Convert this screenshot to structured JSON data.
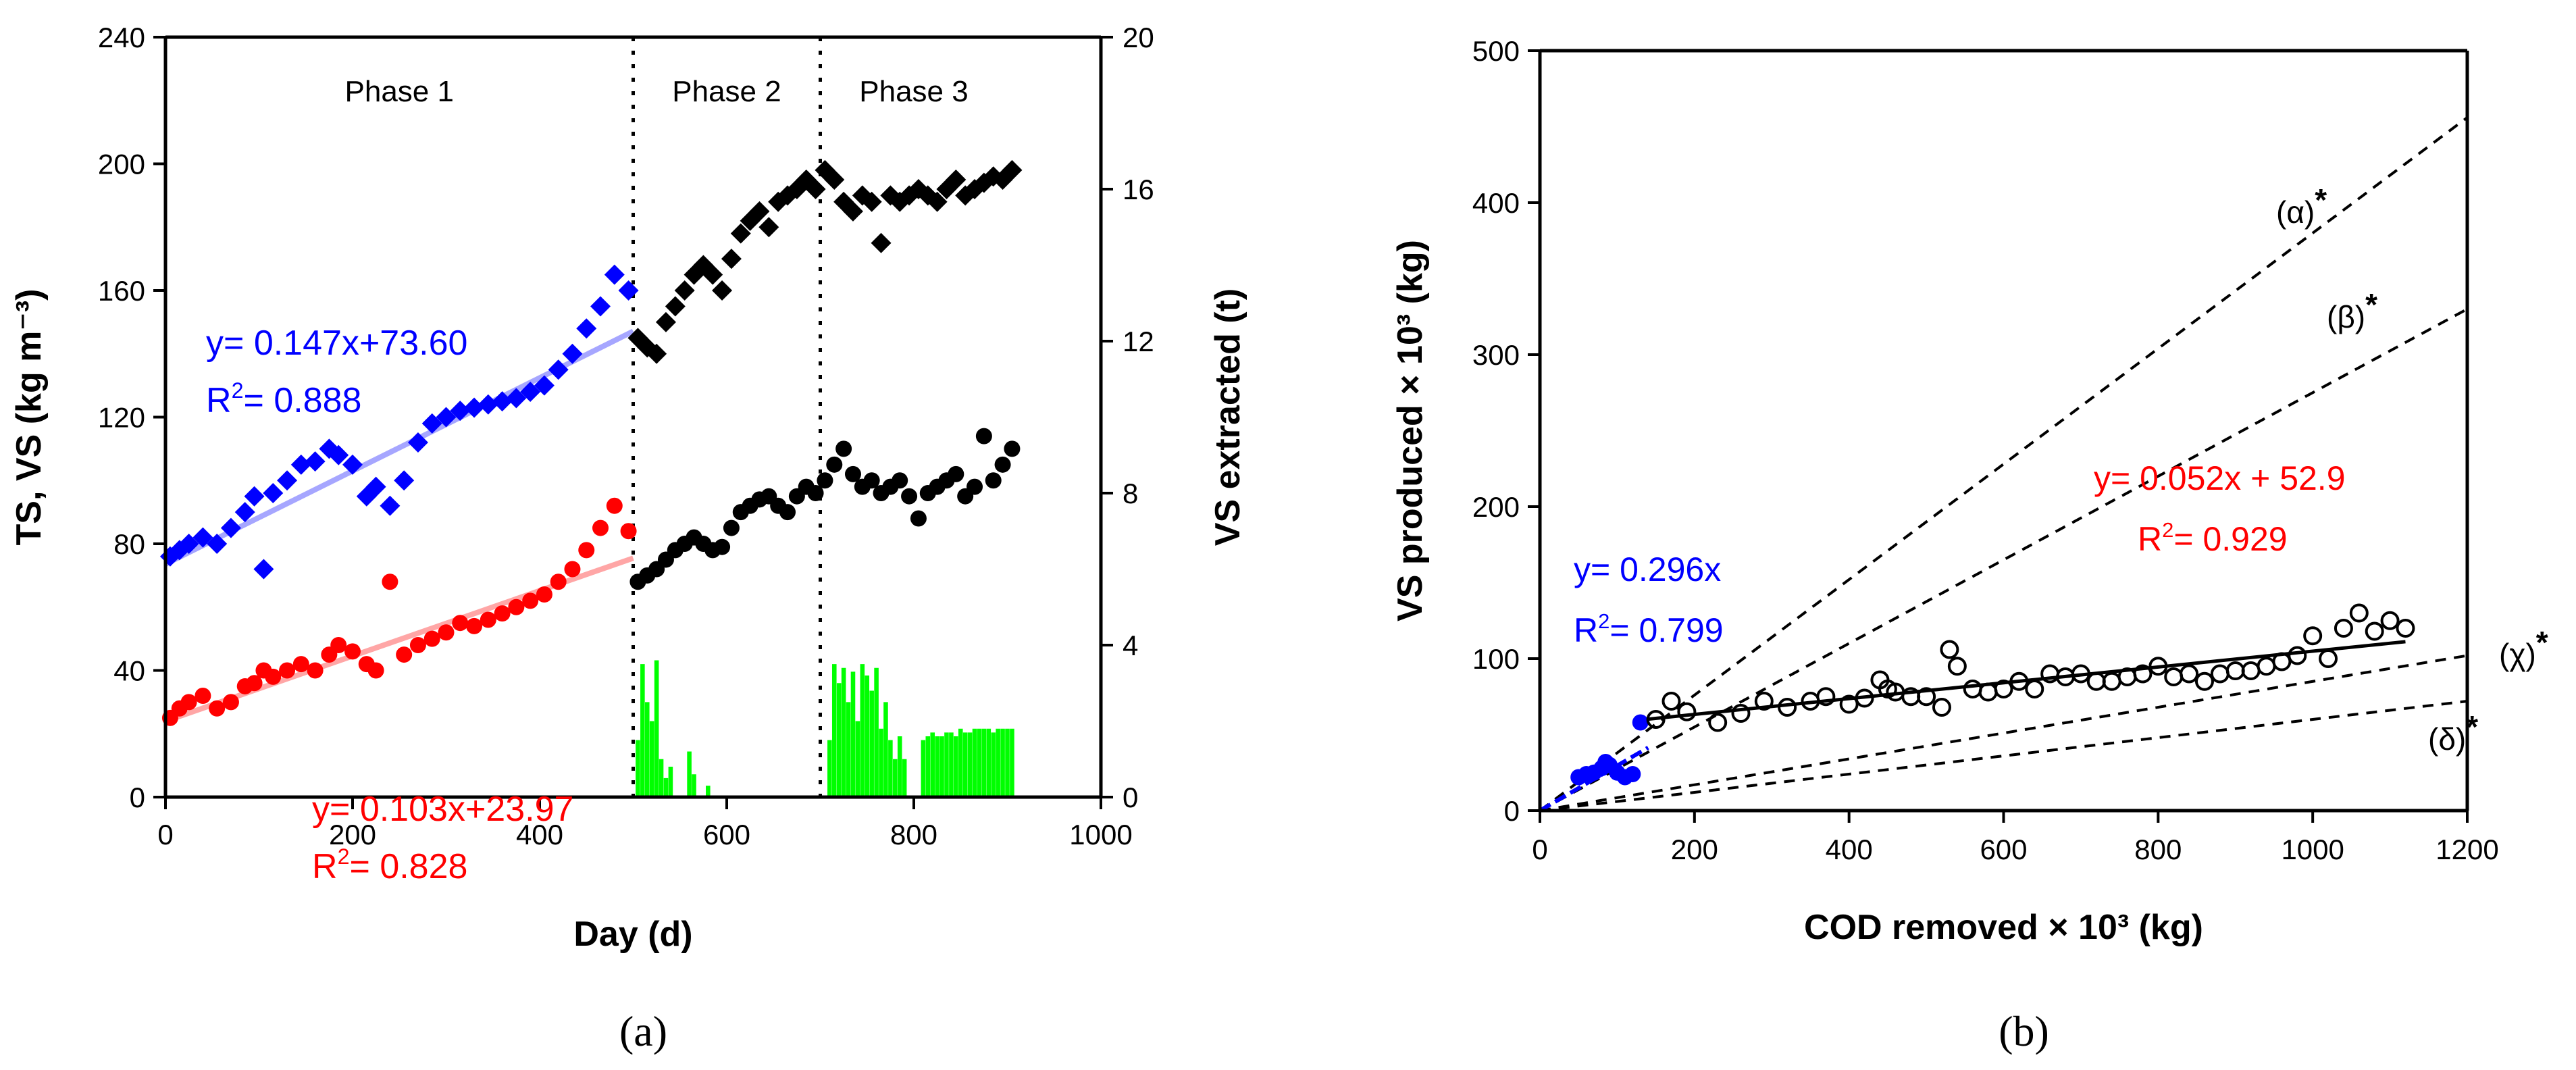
{
  "chart_data": [
    {
      "panel": "(a)",
      "type": "scatter",
      "xlabel": "Day (d)",
      "ylabel": "TS, VS (kg m⁻³)",
      "y2label": "VS extracted (t)",
      "xlim": [
        0,
        1000
      ],
      "ylim": [
        0,
        240
      ],
      "y2lim": [
        0,
        20
      ],
      "xticks": [
        0,
        200,
        400,
        600,
        800,
        1000
      ],
      "yticks": [
        0,
        40,
        80,
        120,
        160,
        200,
        240
      ],
      "y2ticks": [
        0,
        4,
        8,
        12,
        16,
        20
      ],
      "grid": false,
      "phase_dividers": [
        500,
        700
      ],
      "phases": [
        "Phase 1",
        "Phase 2",
        "Phase 3"
      ],
      "annotations": [
        {
          "text": "y= 0.147x+73.60",
          "color": "#0000ff"
        },
        {
          "text": "R",
          "sup": "2",
          "tail": "= 0.888",
          "color": "#0000ff"
        },
        {
          "text": "y= 0.103x+23.97",
          "color": "#ff0000"
        },
        {
          "text": "R",
          "sup": "2",
          "tail": "= 0.828",
          "color": "#ff0000"
        }
      ],
      "series": [
        {
          "marker": "diamond",
          "color": "#0000ff",
          "axis": "y",
          "x": [
            5,
            15,
            25,
            40,
            55,
            70,
            85,
            95,
            105,
            115,
            130,
            145,
            160,
            175,
            185,
            200,
            215,
            225,
            240,
            255,
            270,
            285,
            300,
            315,
            330,
            345,
            360,
            375,
            390,
            405,
            420,
            435,
            450,
            465,
            480,
            495
          ],
          "y": [
            76,
            78,
            80,
            82,
            80,
            85,
            90,
            95,
            72,
            96,
            100,
            105,
            106,
            110,
            108,
            105,
            95,
            98,
            92,
            100,
            112,
            118,
            120,
            122,
            123,
            124,
            125,
            126,
            128,
            130,
            135,
            140,
            148,
            155,
            165,
            160
          ],
          "trend": {
            "slope": 0.147,
            "intercept": 73.6,
            "x_range": [
              0,
              500
            ]
          }
        },
        {
          "marker": "circle",
          "color": "#ff0000",
          "axis": "y",
          "x": [
            5,
            15,
            25,
            40,
            55,
            70,
            85,
            95,
            105,
            115,
            130,
            145,
            160,
            175,
            185,
            200,
            215,
            225,
            240,
            255,
            270,
            285,
            300,
            315,
            330,
            345,
            360,
            375,
            390,
            405,
            420,
            435,
            450,
            465,
            480,
            495
          ],
          "y": [
            25,
            28,
            30,
            32,
            28,
            30,
            35,
            36,
            40,
            38,
            40,
            42,
            40,
            45,
            48,
            46,
            42,
            40,
            68,
            45,
            48,
            50,
            52,
            55,
            54,
            56,
            58,
            60,
            62,
            64,
            68,
            72,
            78,
            85,
            92,
            84
          ],
          "trend": {
            "slope": 0.103,
            "intercept": 23.97,
            "x_range": [
              0,
              500
            ]
          }
        },
        {
          "marker": "diamond",
          "color": "#000000",
          "axis": "y",
          "x": [
            505,
            515,
            525,
            535,
            545,
            555,
            565,
            575,
            585,
            595,
            605,
            615,
            625,
            635,
            645,
            655,
            665,
            675,
            685,
            695,
            705,
            715,
            725,
            735,
            745,
            755,
            765,
            775,
            785,
            795,
            805,
            815,
            825,
            835,
            845,
            855,
            865,
            875,
            885,
            895,
            905
          ],
          "y": [
            145,
            142,
            140,
            150,
            155,
            160,
            165,
            168,
            165,
            160,
            170,
            178,
            182,
            185,
            180,
            188,
            190,
            192,
            195,
            192,
            198,
            195,
            188,
            185,
            190,
            188,
            175,
            190,
            188,
            190,
            192,
            190,
            188,
            192,
            195,
            190,
            192,
            194,
            196,
            195,
            198
          ],
          "trend": null
        },
        {
          "marker": "circle",
          "color": "#000000",
          "axis": "y",
          "x": [
            505,
            515,
            525,
            535,
            545,
            555,
            565,
            575,
            585,
            595,
            605,
            615,
            625,
            635,
            645,
            655,
            665,
            675,
            685,
            695,
            705,
            715,
            725,
            735,
            745,
            755,
            765,
            775,
            785,
            795,
            805,
            815,
            825,
            835,
            845,
            855,
            865,
            875,
            885,
            895,
            905
          ],
          "y": [
            68,
            70,
            72,
            75,
            78,
            80,
            82,
            80,
            78,
            79,
            85,
            90,
            92,
            94,
            95,
            92,
            90,
            95,
            98,
            96,
            100,
            105,
            110,
            102,
            98,
            100,
            96,
            98,
            100,
            95,
            88,
            96,
            98,
            100,
            102,
            95,
            98,
            114,
            100,
            105,
            110
          ],
          "trend": null
        },
        {
          "type": "bar",
          "color": "#00ff00",
          "axis": "y2",
          "name": "",
          "x": [
            505,
            510,
            515,
            520,
            525,
            530,
            535,
            540,
            560,
            565,
            580,
            710,
            715,
            720,
            725,
            730,
            735,
            740,
            745,
            750,
            755,
            760,
            765,
            770,
            775,
            780,
            785,
            790,
            810,
            815,
            820,
            825,
            830,
            835,
            840,
            845,
            850,
            855,
            860,
            865,
            870,
            875,
            880,
            885,
            890,
            895,
            900,
            905
          ],
          "y": [
            1.5,
            3.5,
            2.5,
            2.0,
            3.6,
            1.0,
            0.5,
            0.8,
            1.2,
            0.6,
            0.3,
            1.5,
            3.5,
            3.0,
            3.4,
            2.5,
            3.3,
            2.0,
            3.5,
            3.2,
            2.8,
            3.4,
            1.8,
            2.5,
            1.5,
            1.0,
            1.6,
            1.0,
            1.5,
            1.6,
            1.7,
            1.6,
            1.6,
            1.7,
            1.7,
            1.6,
            1.8,
            1.7,
            1.7,
            1.8,
            1.8,
            1.8,
            1.8,
            1.7,
            1.8,
            1.8,
            1.8,
            1.8
          ]
        }
      ]
    },
    {
      "panel": "(b)",
      "type": "scatter",
      "xlabel": "COD removed × 10³ (kg)",
      "ylabel": "VS produced × 10³ (kg)",
      "xlim": [
        0,
        1200
      ],
      "ylim": [
        0,
        500
      ],
      "xticks": [
        0,
        200,
        400,
        600,
        800,
        1000,
        1200
      ],
      "yticks": [
        0,
        100,
        200,
        300,
        400,
        500
      ],
      "grid": false,
      "annotations": [
        {
          "text": "y= 0.296x",
          "color": "#0000ff"
        },
        {
          "text": "R",
          "sup": "2",
          "tail": "= 0.799",
          "color": "#0000ff"
        },
        {
          "text": "y= 0.052x + 52.9",
          "color": "#ff0000"
        },
        {
          "text": "R",
          "sup": "2",
          "tail": "= 0.929",
          "color": "#ff0000"
        }
      ],
      "reference_lines": [
        {
          "label": "(α)",
          "star": "*",
          "slope": 0.38
        },
        {
          "label": "(β)",
          "star": "*",
          "slope": 0.275
        },
        {
          "label": "(χ)",
          "star": "*",
          "slope": 0.085
        },
        {
          "label": "(δ)",
          "star": "*",
          "slope": 0.06
        }
      ],
      "series": [
        {
          "marker": "circle-filled",
          "color": "#0000ff",
          "x": [
            50,
            60,
            70,
            80,
            85,
            90,
            100,
            110,
            120,
            130
          ],
          "y": [
            22,
            24,
            25,
            28,
            32,
            30,
            25,
            22,
            24,
            58
          ],
          "trend": {
            "slope": 0.296,
            "intercept": 0,
            "x_range": [
              0,
              140
            ]
          }
        },
        {
          "marker": "circle-open",
          "color": "#000000",
          "x": [
            150,
            170,
            190,
            230,
            260,
            290,
            320,
            350,
            370,
            400,
            420,
            440,
            450,
            460,
            480,
            500,
            520,
            530,
            540,
            560,
            580,
            600,
            620,
            640,
            660,
            680,
            700,
            720,
            740,
            760,
            780,
            800,
            820,
            840,
            860,
            880,
            900,
            920,
            940,
            960,
            980,
            1000,
            1020,
            1040,
            1060,
            1080,
            1100,
            1120
          ],
          "y": [
            60,
            72,
            65,
            58,
            64,
            72,
            68,
            72,
            75,
            70,
            74,
            86,
            80,
            78,
            75,
            75,
            68,
            106,
            95,
            80,
            78,
            80,
            85,
            80,
            90,
            88,
            90,
            85,
            85,
            88,
            90,
            95,
            88,
            90,
            85,
            90,
            92,
            92,
            95,
            98,
            102,
            115,
            100,
            120,
            130,
            118,
            125,
            120
          ],
          "trend": {
            "slope": 0.052,
            "intercept": 52.9,
            "x_range": [
              140,
              1120
            ]
          }
        }
      ]
    }
  ]
}
